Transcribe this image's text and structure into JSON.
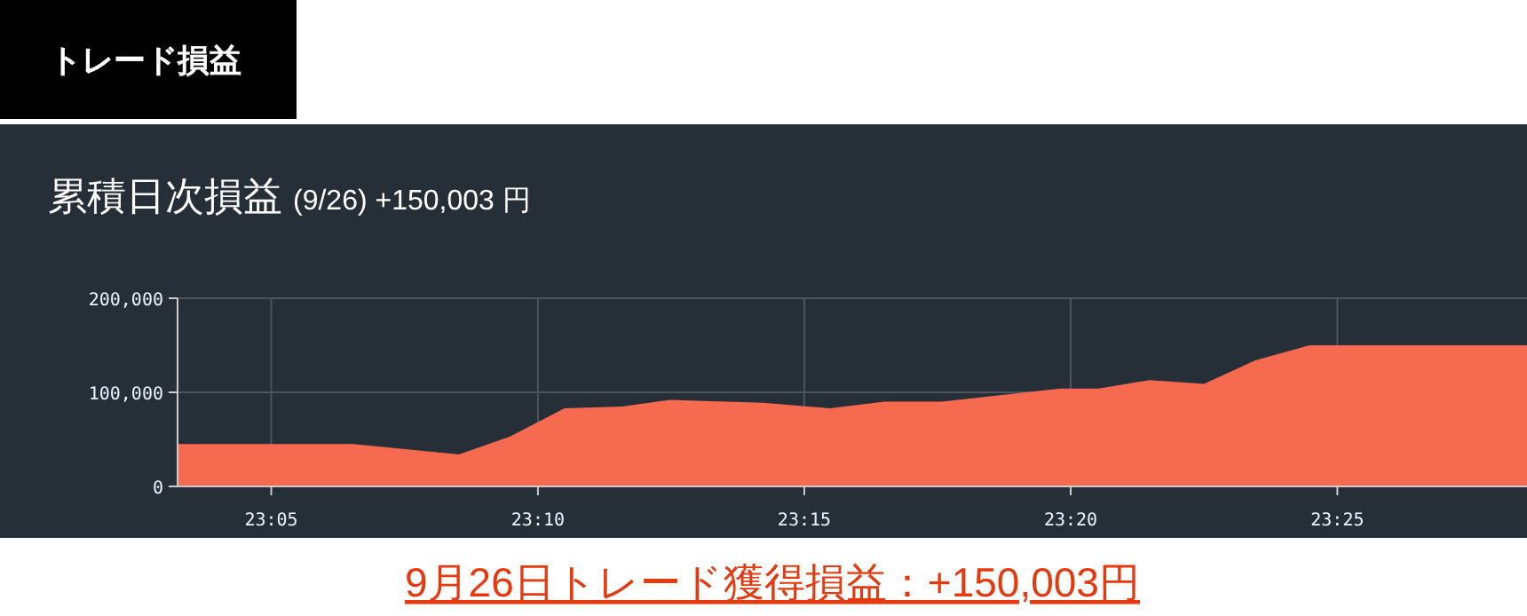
{
  "chart_data": {
    "type": "area",
    "title": "累積日次損益",
    "subtitle": "(9/26) +150,003 円",
    "annotations": [
      "トレード損益",
      "9月26日トレード獲得損益：+150,003円"
    ],
    "x": [
      23.054,
      23.109,
      23.142,
      23.158,
      23.175,
      23.193,
      23.208,
      23.237,
      23.258,
      23.275,
      23.293,
      23.33,
      23.342,
      23.358,
      23.375,
      23.391,
      23.408,
      23.476
    ],
    "series": [
      {
        "color": "#f66a4f",
        "values": [
          45000,
          45000,
          34000,
          53000,
          83000,
          85000,
          92000,
          89000,
          83000,
          90000,
          90000,
          104000,
          104000,
          113000,
          109000,
          134000,
          150000,
          150000
        ]
      }
    ],
    "xlim": [
      23.054,
      23.476
    ],
    "xticks": [
      {
        "value": 23.0833,
        "label": "23:05"
      },
      {
        "value": 23.1667,
        "label": "23:10"
      },
      {
        "value": 23.25,
        "label": "23:15"
      },
      {
        "value": 23.3333,
        "label": "23:20"
      },
      {
        "value": 23.4167,
        "label": "23:25"
      }
    ],
    "ylim": [
      0,
      200000
    ],
    "yticks": [
      {
        "value": 0,
        "label": "0"
      },
      {
        "value": 100000,
        "label": "100,000"
      },
      {
        "value": 200000,
        "label": "200,000"
      }
    ],
    "grid": true
  }
}
